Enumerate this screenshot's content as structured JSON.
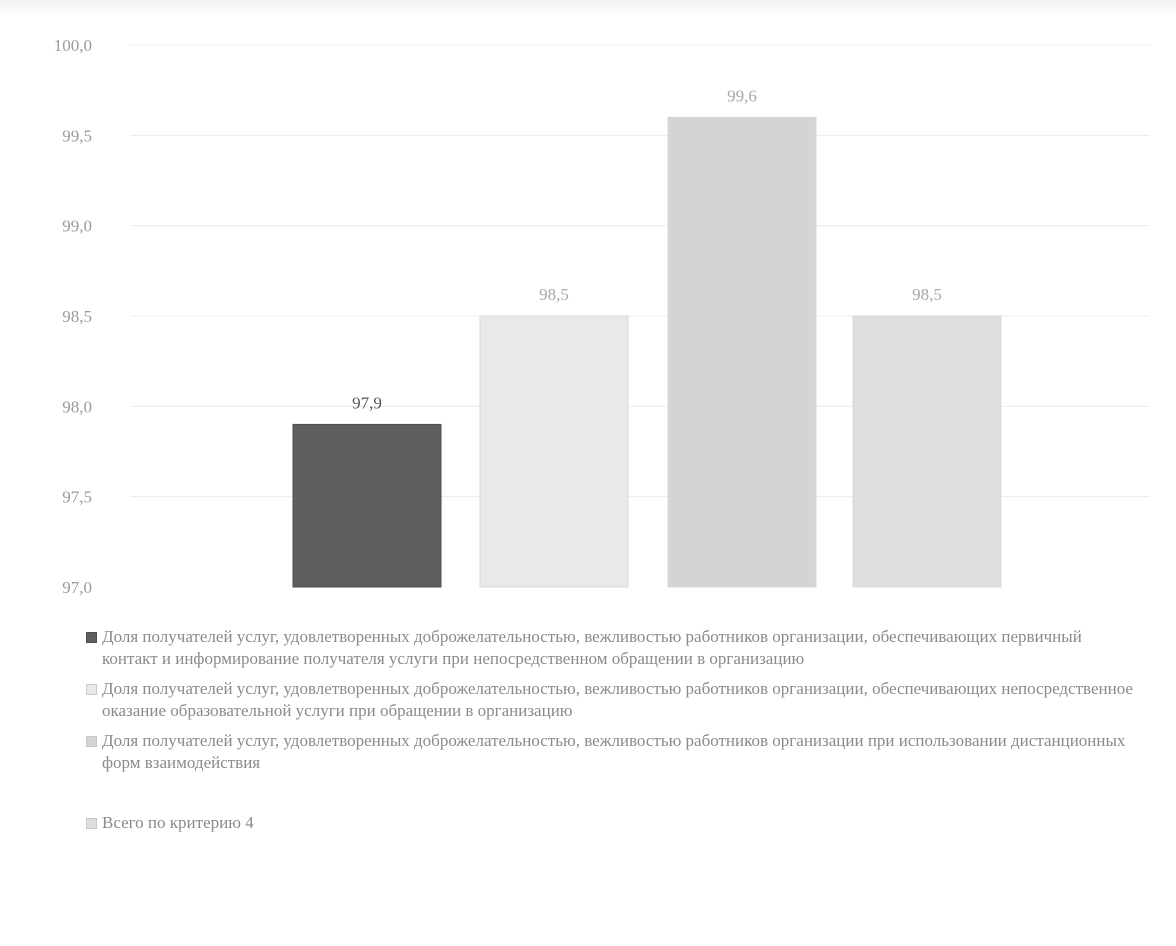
{
  "chart_data": {
    "type": "bar",
    "categories": [
      "Доля получателей услуг, удовлетворенных доброжелательностью, вежливостью работников организации, обеспечивающих первичный контакт и информирование получателя услуги при непосредственном обращении в организацию",
      "Доля получателей услуг, удовлетворенных доброжелательностью, вежливостью работников организации, обеспечивающих непосредственное оказание образовательной услуги при обращении в организацию",
      "Доля получателей услуг, удовлетворенных доброжелательностью, вежливостью работников организации при использовании дистанционных форм взаимодействия",
      "Всего по критерию 4"
    ],
    "values": [
      97.9,
      98.5,
      99.6,
      98.5
    ],
    "value_labels": [
      "97,9",
      "98,5",
      "99,6",
      "98,5"
    ],
    "ylim": [
      97.0,
      100.0
    ],
    "yticks": [
      "97,0",
      "97,5",
      "98,0",
      "98,5",
      "99,0",
      "99,5",
      "100,0"
    ],
    "grid": true,
    "legend_position": "bottom",
    "colors": [
      "#5f5f5f",
      "#e9e9e9",
      "#d4d4d4",
      "#dedede"
    ],
    "title": "",
    "xlabel": "",
    "ylabel": ""
  }
}
